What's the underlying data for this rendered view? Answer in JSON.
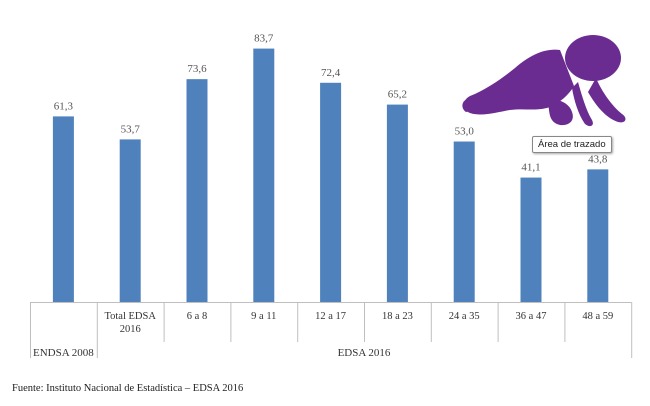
{
  "chart_data": {
    "type": "bar",
    "categories": [
      {
        "label": "",
        "value": 61.3,
        "value_label": "61,3"
      },
      {
        "label": "Total EDSA 2016",
        "value": 53.7,
        "value_label": "53,7"
      },
      {
        "label": "6 a 8",
        "value": 73.6,
        "value_label": "73,6"
      },
      {
        "label": "9 a 11",
        "value": 83.7,
        "value_label": "83,7"
      },
      {
        "label": "12 a 17",
        "value": 72.4,
        "value_label": "72,4"
      },
      {
        "label": "18 a 23",
        "value": 65.2,
        "value_label": "65,2"
      },
      {
        "label": "24 a 35",
        "value": 53.0,
        "value_label": "53,0"
      },
      {
        "label": "36 a 47",
        "value": 41.1,
        "value_label": "41,1"
      },
      {
        "label": "48 a 59",
        "value": 43.8,
        "value_label": "43,8"
      }
    ],
    "groups": [
      {
        "label": "ENDSA 2008",
        "span": [
          0,
          0
        ]
      },
      {
        "label": "EDSA 2016",
        "span": [
          1,
          8
        ]
      }
    ],
    "ylim": [
      0,
      90
    ],
    "bar_color": "#4f81bd",
    "grid": false
  },
  "tooltip": "Área de trazado",
  "source": "Fuente: Instituto Nacional de Estadística – EDSA 2016",
  "decoration": {
    "icon": "crawling-baby-icon",
    "color": "#6b2c91"
  }
}
